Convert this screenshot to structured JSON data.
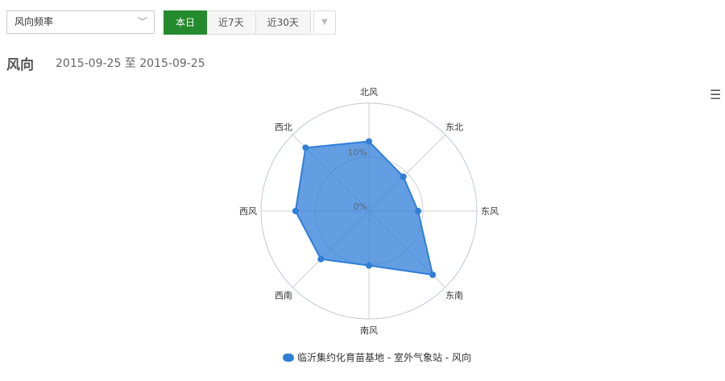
{
  "controls": {
    "metric_select": "风向频率",
    "buttons": [
      "本日",
      "近7天",
      "近30天"
    ],
    "active": "本日"
  },
  "header": {
    "title": "风向",
    "date_range": "2015-09-25 至 2015-09-25"
  },
  "chart_data": {
    "type": "polar-area",
    "categories": [
      "北风",
      "东北",
      "东风",
      "东南",
      "南风",
      "西南",
      "西风",
      "西北"
    ],
    "series": [
      {
        "name": "临沂集约化育苗基地 - 室外气象站 - 风向",
        "values": [
          12.9,
          9.0,
          9.1,
          16.7,
          10.1,
          12.6,
          13.6,
          16.6
        ],
        "color": "#2f7ed8"
      }
    ],
    "radial_ticks": [
      "0%",
      "10%"
    ],
    "rlim": [
      0,
      20
    ],
    "legend": "bottom"
  }
}
